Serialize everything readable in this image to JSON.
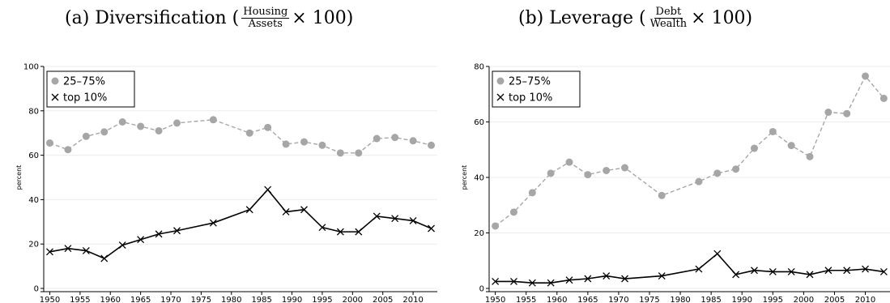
{
  "panels": [
    {
      "title_prefix": "(a) Diversification (",
      "frac_num": "Housing",
      "frac_den": "Assets",
      "title_suffix": "× 100)"
    },
    {
      "title_prefix": "(b) Leverage (",
      "frac_num": "Debt",
      "frac_den": "Wealth",
      "title_suffix": "× 100)"
    }
  ],
  "chart_data": [
    {
      "type": "line",
      "title": "(a) Diversification (Housing/Assets × 100)",
      "xlabel": "",
      "ylabel": "percent",
      "xlim": [
        1949,
        2014
      ],
      "ylim": [
        0,
        100
      ],
      "xticks": [
        1950,
        1955,
        1960,
        1965,
        1970,
        1975,
        1980,
        1985,
        1990,
        1995,
        2000,
        2005,
        2010
      ],
      "yticks": [
        0,
        20,
        40,
        60,
        80,
        100
      ],
      "grid": true,
      "legend": "top-left",
      "series": [
        {
          "name": "25–75%",
          "color": "#a6a6a6",
          "marker": "circle",
          "dash": true,
          "x": [
            1950,
            1953,
            1956,
            1959,
            1962,
            1965,
            1968,
            1971,
            1977,
            1983,
            1986,
            1989,
            1992,
            1995,
            1998,
            2001,
            2004,
            2007,
            2010,
            2013
          ],
          "y": [
            65.5,
            62.5,
            68.5,
            70.5,
            75,
            73,
            71,
            74.5,
            76,
            70,
            72.5,
            65,
            66,
            64.5,
            61,
            61,
            67.5,
            68,
            66.5,
            64.5
          ]
        },
        {
          "name": "top 10%",
          "color": "#000000",
          "marker": "x",
          "dash": false,
          "x": [
            1950,
            1953,
            1956,
            1959,
            1962,
            1965,
            1968,
            1971,
            1977,
            1983,
            1986,
            1989,
            1992,
            1995,
            1998,
            2001,
            2004,
            2007,
            2010,
            2013
          ],
          "y": [
            16.5,
            18,
            17,
            13.5,
            19.5,
            22,
            24.5,
            26,
            29.5,
            35.5,
            44.5,
            34.5,
            35.5,
            27.5,
            25.5,
            25.5,
            32.5,
            31.5,
            30.5,
            27
          ]
        }
      ]
    },
    {
      "type": "line",
      "title": "(b) Leverage (Debt/Wealth × 100)",
      "xlabel": "",
      "ylabel": "percent",
      "xlim": [
        1949,
        2014
      ],
      "ylim": [
        0,
        80
      ],
      "xticks": [
        1950,
        1955,
        1960,
        1965,
        1970,
        1975,
        1980,
        1985,
        1990,
        1995,
        2000,
        2005,
        2010
      ],
      "yticks": [
        0,
        20,
        40,
        60,
        80
      ],
      "grid": true,
      "legend": "top-left",
      "series": [
        {
          "name": "25–75%",
          "color": "#a6a6a6",
          "marker": "circle",
          "dash": true,
          "x": [
            1950,
            1953,
            1956,
            1959,
            1962,
            1965,
            1968,
            1971,
            1977,
            1983,
            1986,
            1989,
            1992,
            1995,
            1998,
            2001,
            2004,
            2007,
            2010,
            2013
          ],
          "y": [
            22.5,
            27.5,
            34.5,
            41.5,
            45.5,
            41,
            42.5,
            43.5,
            33.5,
            38.5,
            41.5,
            43,
            50.5,
            56.5,
            51.5,
            47.5,
            63.5,
            63,
            76.5,
            68.5
          ]
        },
        {
          "name": "top 10%",
          "color": "#000000",
          "marker": "x",
          "dash": false,
          "x": [
            1950,
            1953,
            1956,
            1959,
            1962,
            1965,
            1968,
            1971,
            1977,
            1983,
            1986,
            1989,
            1992,
            1995,
            1998,
            2001,
            2004,
            2007,
            2010,
            2013
          ],
          "y": [
            2.5,
            2.5,
            2,
            2,
            3,
            3.5,
            4.5,
            3.5,
            4.5,
            7,
            12.5,
            5,
            6.5,
            6,
            6,
            5,
            6.5,
            6.5,
            7,
            6
          ]
        }
      ]
    }
  ]
}
